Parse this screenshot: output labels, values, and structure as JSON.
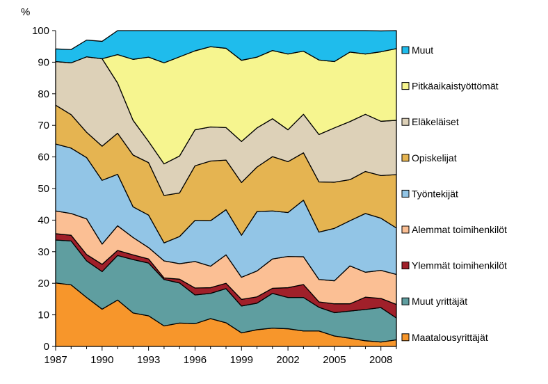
{
  "chart_data": {
    "type": "area",
    "stacked": true,
    "ylabel": "%",
    "ylim": [
      0,
      100
    ],
    "yticks": [
      0,
      10,
      20,
      30,
      40,
      50,
      60,
      70,
      80,
      90,
      100
    ],
    "xlim": [
      1987,
      2009
    ],
    "xticks": [
      1987,
      1990,
      1993,
      1996,
      1999,
      2002,
      2005,
      2008
    ],
    "grid": false,
    "legend_position": "right",
    "x": [
      1987,
      1988,
      1989,
      1990,
      1991,
      1992,
      1993,
      1994,
      1995,
      1996,
      1997,
      1998,
      1999,
      2000,
      2001,
      2002,
      2003,
      2004,
      2005,
      2006,
      2007,
      2008,
      2009
    ],
    "series": [
      {
        "name": "Maatalousyrittäjät",
        "color": "#f7962b",
        "values": [
          20.1,
          19.5,
          15.5,
          11.8,
          14.7,
          10.6,
          9.7,
          6.5,
          7.4,
          7.2,
          8.8,
          7.5,
          4.3,
          5.3,
          5.8,
          5.6,
          4.9,
          4.9,
          3.3,
          2.6,
          1.8,
          1.4,
          2.1
        ]
      },
      {
        "name": "Muut yrittäjät",
        "color": "#5f9ea0",
        "values": [
          13.6,
          13.9,
          11.6,
          11.9,
          14.1,
          16.9,
          16.7,
          14.7,
          12.7,
          9.1,
          8.0,
          10.8,
          8.5,
          8.4,
          11.0,
          9.9,
          10.6,
          7.5,
          7.4,
          8.6,
          9.9,
          10.9,
          6.9
        ]
      },
      {
        "name": "Ylemmät toimihenkilöt",
        "color": "#a0202a",
        "values": [
          2.0,
          1.8,
          2.0,
          2.3,
          1.6,
          1.5,
          1.3,
          0.5,
          1.2,
          2.2,
          1.8,
          1.7,
          2.1,
          2.0,
          1.6,
          3.1,
          4.1,
          1.7,
          2.8,
          2.3,
          3.9,
          2.9,
          4.3
        ]
      },
      {
        "name": "Alemmat toimihenkilöt",
        "color": "#fbbf94",
        "values": [
          7.2,
          6.9,
          11.3,
          6.4,
          7.8,
          5.5,
          3.6,
          5.4,
          4.9,
          8.4,
          6.8,
          9.0,
          7.0,
          8.2,
          9.3,
          9.9,
          8.8,
          7.1,
          7.3,
          12.0,
          7.9,
          8.9,
          9.5
        ]
      },
      {
        "name": "Työntekijät",
        "color": "#92c5e6",
        "values": [
          21.2,
          20.7,
          19.4,
          20.2,
          16.3,
          9.7,
          10.3,
          5.7,
          8.6,
          13.0,
          14.4,
          14.3,
          13.3,
          18.8,
          15.2,
          13.9,
          17.9,
          15.0,
          16.6,
          14.3,
          18.6,
          16.5,
          14.7
        ]
      },
      {
        "name": "Opiskelijat",
        "color": "#e5b451",
        "values": [
          12.3,
          10.6,
          8.0,
          10.8,
          13.0,
          16.4,
          16.6,
          15.0,
          13.8,
          17.3,
          18.9,
          15.7,
          16.7,
          14.1,
          17.2,
          16.1,
          15.0,
          15.9,
          14.6,
          13.0,
          13.3,
          13.5,
          16.9
        ]
      },
      {
        "name": "Eläkeläiset",
        "color": "#ddd1b8",
        "values": [
          13.8,
          16.4,
          23.9,
          27.7,
          15.9,
          11.0,
          6.7,
          10.0,
          11.7,
          11.4,
          10.8,
          10.3,
          13.0,
          12.4,
          12.0,
          10.1,
          12.2,
          15.0,
          17.2,
          18.4,
          18.1,
          17.2,
          17.2
        ]
      },
      {
        "name": "Pitkäaikaistyöttömät",
        "color": "#f6f58f",
        "values": [
          0.0,
          0.0,
          0.0,
          0.0,
          9.0,
          19.3,
          26.7,
          32.0,
          31.4,
          25.0,
          25.4,
          25.1,
          25.7,
          22.4,
          21.6,
          24.0,
          20.0,
          23.6,
          21.0,
          22.0,
          19.1,
          22.0,
          22.7
        ]
      },
      {
        "name": "Muut",
        "color": "#1fbcec",
        "values": [
          4.0,
          4.2,
          5.3,
          5.5,
          7.6,
          9.3,
          8.4,
          10.2,
          8.3,
          6.4,
          5.1,
          5.6,
          9.4,
          8.4,
          6.3,
          7.4,
          6.5,
          9.3,
          9.8,
          6.8,
          7.4,
          6.6,
          5.7
        ]
      }
    ]
  }
}
